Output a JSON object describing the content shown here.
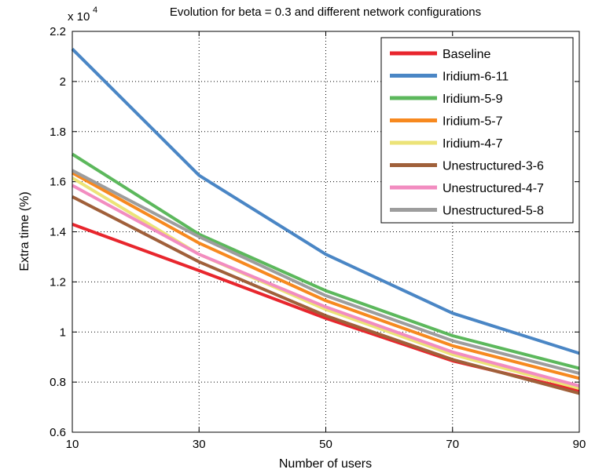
{
  "chart_data": {
    "type": "line",
    "title": "Evolution for beta = 0.3 and different network configurations",
    "xlabel": "Number of users",
    "ylabel": "Extra time (%)",
    "y_multiplier_label": "x 10",
    "y_multiplier_exponent": "4",
    "xlim": [
      10,
      90
    ],
    "ylim": [
      0.6,
      2.2
    ],
    "x": [
      10,
      30,
      50,
      70,
      90
    ],
    "xticks": [
      "10",
      "30",
      "50",
      "70",
      "90"
    ],
    "yticks": [
      "0.6",
      "0.8",
      "1",
      "1.2",
      "1.4",
      "1.6",
      "1.8",
      "2",
      "2.2"
    ],
    "grid": true,
    "legend_position": "top-right",
    "series": [
      {
        "name": "Baseline",
        "color": "#e8262d",
        "values": [
          1.43,
          1.245,
          1.055,
          0.885,
          0.765
        ]
      },
      {
        "name": "Iridium-6-11",
        "color": "#4a86c5",
        "values": [
          2.13,
          1.625,
          1.31,
          1.075,
          0.915
        ]
      },
      {
        "name": "Iridium-5-9",
        "color": "#5cb85c",
        "values": [
          1.71,
          1.39,
          1.165,
          0.985,
          0.855
        ]
      },
      {
        "name": "Iridium-5-7",
        "color": "#f7891f",
        "values": [
          1.635,
          1.355,
          1.125,
          0.945,
          0.815
        ]
      },
      {
        "name": "Iridium-4-7",
        "color": "#ece378",
        "values": [
          1.615,
          1.31,
          1.09,
          0.91,
          0.775
        ]
      },
      {
        "name": "Unestructured-3-6",
        "color": "#a0603a",
        "values": [
          1.54,
          1.28,
          1.065,
          0.89,
          0.755
        ]
      },
      {
        "name": "Unestructured-4-7",
        "color": "#f28cc0",
        "values": [
          1.585,
          1.31,
          1.1,
          0.92,
          0.785
        ]
      },
      {
        "name": "Unestructured-5-8",
        "color": "#9d9d9d",
        "values": [
          1.645,
          1.38,
          1.145,
          0.965,
          0.835
        ]
      }
    ]
  }
}
